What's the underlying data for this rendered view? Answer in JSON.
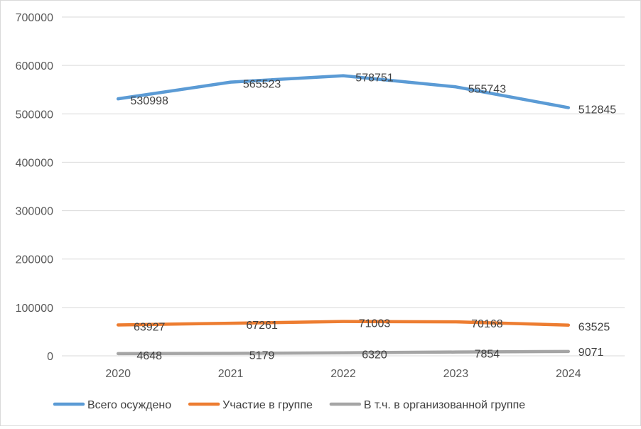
{
  "chart_data": {
    "type": "line",
    "categories": [
      "2020",
      "2021",
      "2022",
      "2023",
      "2024"
    ],
    "ylim": [
      0,
      700000
    ],
    "yticks": [
      0,
      100000,
      200000,
      300000,
      400000,
      500000,
      600000,
      700000
    ],
    "grid": true,
    "legend_position": "bottom",
    "series": [
      {
        "name": "Всего осуждено",
        "color": "#5B9BD5",
        "values": [
          530998,
          565523,
          578751,
          555743,
          512845
        ]
      },
      {
        "name": "Участие в группе",
        "color": "#ED7D31",
        "values": [
          63927,
          67261,
          71003,
          70168,
          63525
        ]
      },
      {
        "name": "В т.ч. в организованной группе",
        "color": "#A5A5A5",
        "values": [
          4648,
          5179,
          6320,
          7854,
          9071
        ]
      }
    ]
  }
}
